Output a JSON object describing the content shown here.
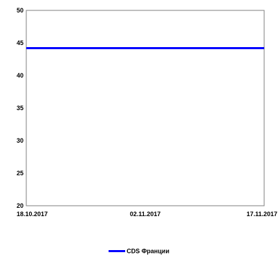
{
  "chart_data": {
    "type": "line",
    "title": "",
    "xlabel": "",
    "ylabel": "",
    "ylim": [
      20,
      50
    ],
    "yticks": [
      20,
      25,
      30,
      35,
      40,
      45,
      50
    ],
    "x": [
      "18.10.2017",
      "02.11.2017",
      "17.11.2017"
    ],
    "series": [
      {
        "name": "CDS Франции",
        "color": "#0000ff",
        "values": [
          44.2,
          44.2,
          44.2
        ]
      }
    ],
    "grid": false,
    "legend": "bottom-center"
  }
}
